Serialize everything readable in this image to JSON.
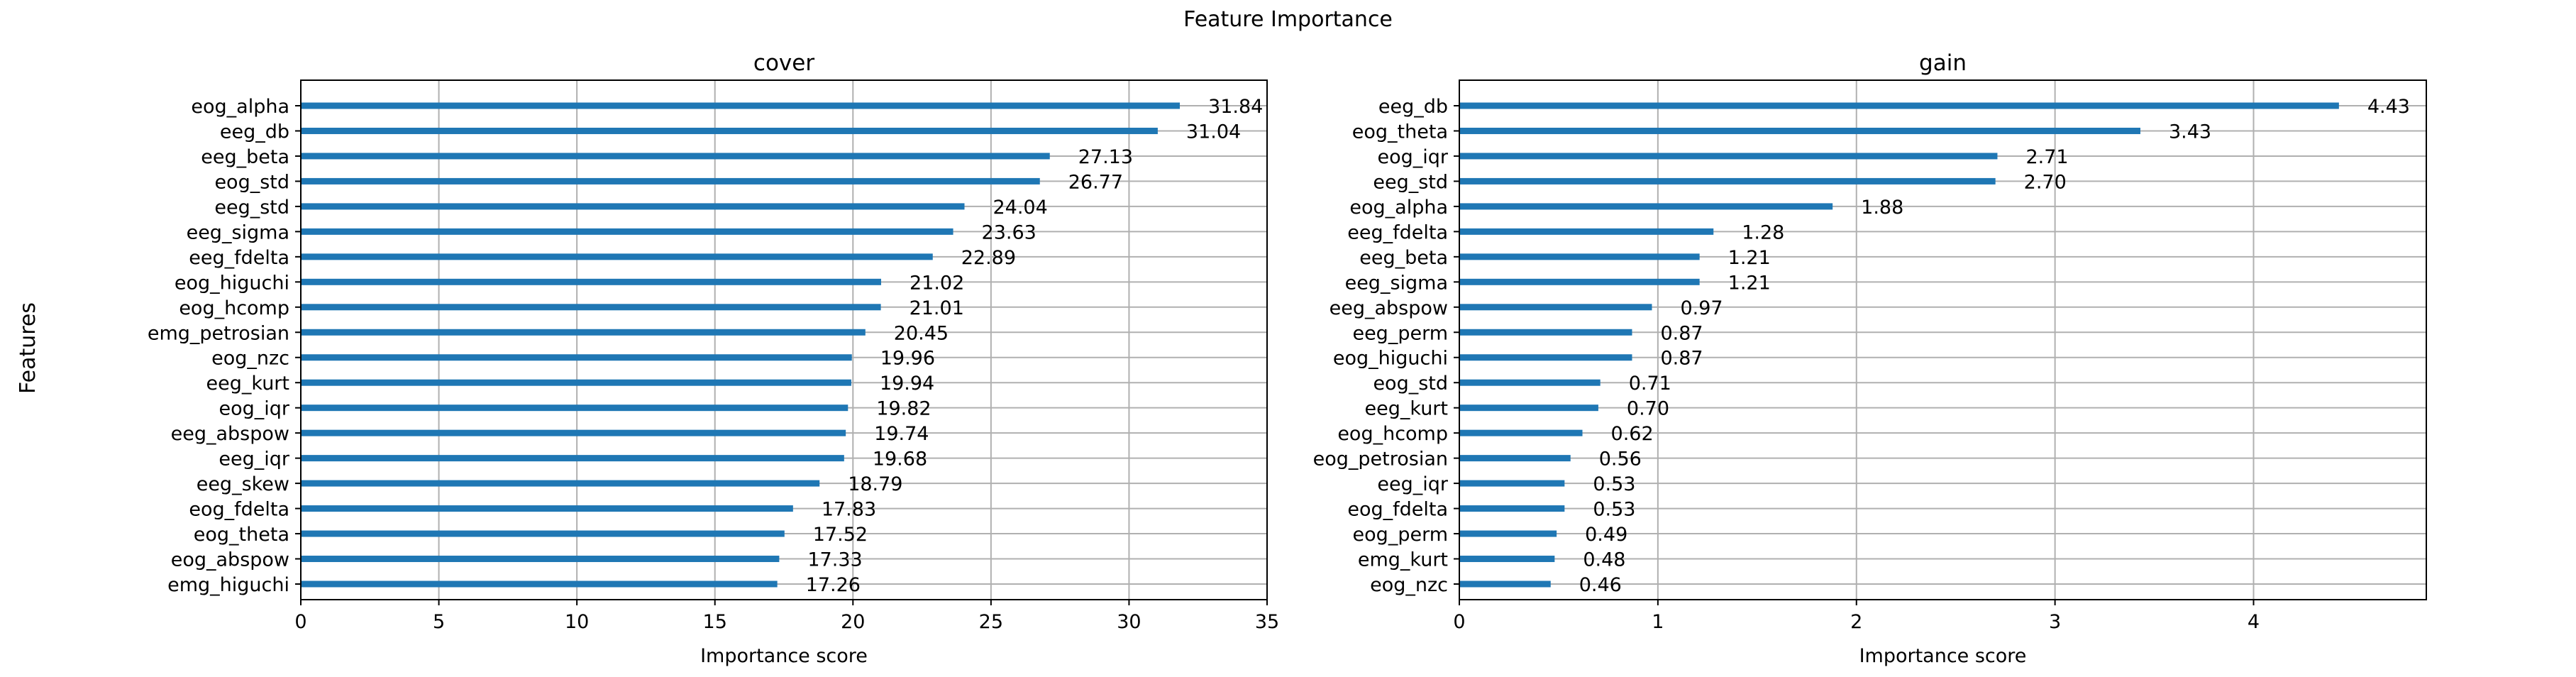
{
  "figure": {
    "title": "Feature Importance",
    "ylabel": "Features"
  },
  "chart_data": [
    {
      "type": "bar",
      "orientation": "horizontal",
      "title": "cover",
      "xlabel": "Importance score",
      "ylabel": "",
      "xlim": [
        0,
        35
      ],
      "xticks": [
        0,
        5,
        10,
        15,
        20,
        25,
        30,
        35
      ],
      "grid": true,
      "bar_color": "#1f77b4",
      "categories": [
        "eog_alpha",
        "eeg_db",
        "eeg_beta",
        "eog_std",
        "eeg_std",
        "eeg_sigma",
        "eeg_fdelta",
        "eog_higuchi",
        "eog_hcomp",
        "emg_petrosian",
        "eog_nzc",
        "eeg_kurt",
        "eog_iqr",
        "eeg_abspow",
        "eeg_iqr",
        "eeg_skew",
        "eog_fdelta",
        "eog_theta",
        "eog_abspow",
        "emg_higuchi"
      ],
      "values": [
        31.84,
        31.04,
        27.13,
        26.77,
        24.04,
        23.63,
        22.89,
        21.02,
        21.01,
        20.45,
        19.96,
        19.94,
        19.82,
        19.74,
        19.68,
        18.79,
        17.83,
        17.52,
        17.33,
        17.26
      ],
      "value_labels": [
        "31.84",
        "31.04",
        "27.13",
        "26.77",
        "24.04",
        "23.63",
        "22.89",
        "21.02",
        "21.01",
        "20.45",
        "19.96",
        "19.94",
        "19.82",
        "19.74",
        "19.68",
        "18.79",
        "17.83",
        "17.52",
        "17.33",
        "17.26"
      ]
    },
    {
      "type": "bar",
      "orientation": "horizontal",
      "title": "gain",
      "xlabel": "Importance score",
      "ylabel": "",
      "xlim": [
        0,
        4.87
      ],
      "xticks": [
        0,
        1,
        2,
        3,
        4
      ],
      "grid": true,
      "bar_color": "#1f77b4",
      "categories": [
        "eeg_db",
        "eog_theta",
        "eog_iqr",
        "eeg_std",
        "eog_alpha",
        "eeg_fdelta",
        "eeg_beta",
        "eeg_sigma",
        "eeg_abspow",
        "eeg_perm",
        "eog_higuchi",
        "eog_std",
        "eeg_kurt",
        "eog_hcomp",
        "eog_petrosian",
        "eeg_iqr",
        "eog_fdelta",
        "eog_perm",
        "emg_kurt",
        "eog_nzc"
      ],
      "values": [
        4.43,
        3.43,
        2.71,
        2.7,
        1.88,
        1.28,
        1.21,
        1.21,
        0.97,
        0.87,
        0.87,
        0.71,
        0.7,
        0.62,
        0.56,
        0.53,
        0.53,
        0.49,
        0.48,
        0.46
      ],
      "value_labels": [
        "4.43",
        "3.43",
        "2.71",
        "2.70",
        "1.88",
        "1.28",
        "1.21",
        "1.21",
        "0.97",
        "0.87",
        "0.87",
        "0.71",
        "0.70",
        "0.62",
        "0.56",
        "0.53",
        "0.53",
        "0.49",
        "0.48",
        "0.46"
      ]
    }
  ]
}
